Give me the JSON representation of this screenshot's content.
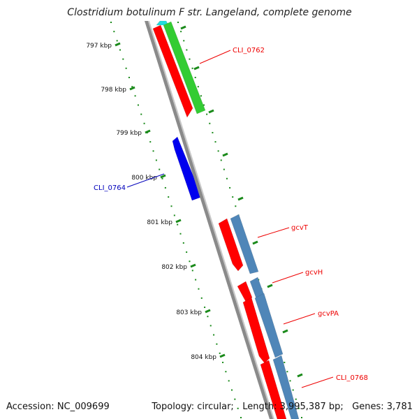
{
  "header": {
    "title": "Clostridium botulinum F str. Langeland, complete genome"
  },
  "footer": {
    "accession": "Accession: NC_009699",
    "topology": "Topology: circular;",
    "length": "Length: 3,995,387 bp;",
    "genes": "Genes: 3,781"
  },
  "colors": {
    "backbone": "#8a8a8a",
    "ruler": "#1a8a1a",
    "cds_forward": "#ff0000",
    "gene_green": "#33cc33",
    "gene_blue": "#0000ee",
    "gene_steel": "#4f86b8",
    "label_red": "#ee0000",
    "label_blue": "#0000bb"
  },
  "ticks": [
    "797 kbp",
    "798 kbp",
    "799 kbp",
    "800 kbp",
    "801 kbp",
    "802 kbp",
    "803 kbp",
    "804 kbp"
  ],
  "genes": [
    {
      "label": "CLI_0762",
      "color": "#ee0000"
    },
    {
      "label": "CLI_0764",
      "color": "#0000bb"
    },
    {
      "label": "gcvT",
      "color": "#ee0000"
    },
    {
      "label": "gcvH",
      "color": "#ee0000"
    },
    {
      "label": "gcvPA",
      "color": "#ee0000"
    },
    {
      "label": "CLI_0768",
      "color": "#ee0000"
    }
  ]
}
